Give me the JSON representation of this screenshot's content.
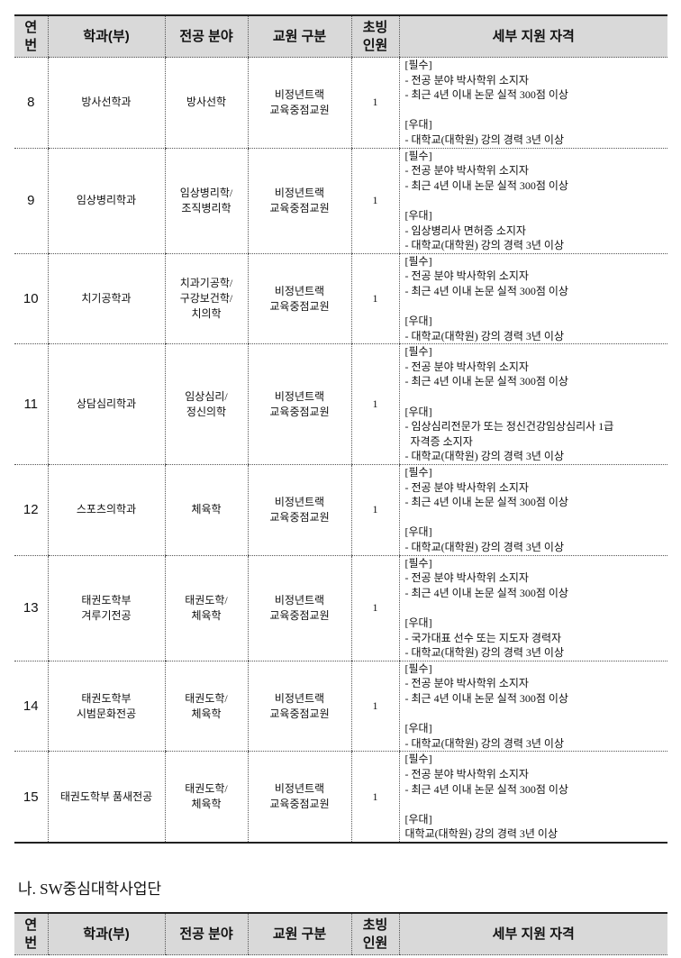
{
  "headers": {
    "no": "연\n번",
    "dept": "학과(부)",
    "field": "전공 분야",
    "type": "교원 구분",
    "count": "초빙\n인원",
    "detail": "세부 지원 자격"
  },
  "rows": [
    {
      "no": "8",
      "dept": "방사선학과",
      "field": "방사선학",
      "type": "비정년트랙\n교육중점교원",
      "count": "1",
      "detail": [
        "[필수]",
        "- 전공 분야 박사학위 소지자",
        "- 최근 4년 이내 논문 실적 300점 이상",
        "",
        "[우대]",
        "- 대학교(대학원) 강의 경력 3년 이상"
      ]
    },
    {
      "no": "9",
      "dept": "임상병리학과",
      "field": "임상병리학/\n조직병리학",
      "type": "비정년트랙\n교육중점교원",
      "count": "1",
      "detail": [
        "[필수]",
        "- 전공 분야 박사학위 소지자",
        "- 최근 4년 이내 논문 실적 300점 이상",
        "",
        "[우대]",
        "- 임상병리사 면허증 소지자",
        "- 대학교(대학원) 강의 경력 3년 이상"
      ]
    },
    {
      "no": "10",
      "dept": "치기공학과",
      "field": "치과기공학/\n구강보건학/\n치의학",
      "type": "비정년트랙\n교육중점교원",
      "count": "1",
      "detail": [
        "[필수]",
        "- 전공 분야 박사학위 소지자",
        "- 최근 4년 이내 논문 실적 300점 이상",
        "",
        "[우대]",
        "- 대학교(대학원) 강의 경력 3년 이상"
      ]
    },
    {
      "no": "11",
      "dept": "상담심리학과",
      "field": "임상심리/\n정신의학",
      "type": "비정년트랙\n교육중점교원",
      "count": "1",
      "detail": [
        "[필수]",
        "- 전공 분야 박사학위 소지자",
        "- 최근 4년 이내 논문 실적 300점 이상",
        "",
        "[우대]",
        "- 임상심리전문가 또는 정신건강임상심리사 1급",
        "  자격증 소지자",
        "- 대학교(대학원) 강의 경력 3년 이상"
      ]
    },
    {
      "no": "12",
      "dept": "스포츠의학과",
      "field": "체육학",
      "type": "비정년트랙\n교육중점교원",
      "count": "1",
      "detail": [
        "[필수]",
        "- 전공 분야 박사학위 소지자",
        "- 최근 4년 이내 논문 실적 300점 이상",
        "",
        "[우대]",
        "- 대학교(대학원) 강의 경력 3년 이상"
      ]
    },
    {
      "no": "13",
      "dept": "태권도학부\n겨루기전공",
      "field": "태권도학/\n체육학",
      "type": "비정년트랙\n교육중점교원",
      "count": "1",
      "detail": [
        "[필수]",
        "- 전공 분야 박사학위 소지자",
        "- 최근 4년 이내 논문 실적 300점 이상",
        "",
        "[우대]",
        "- 국가대표 선수 또는 지도자 경력자",
        "- 대학교(대학원) 강의 경력 3년 이상"
      ]
    },
    {
      "no": "14",
      "dept": "태권도학부\n시범문화전공",
      "field": "태권도학/\n체육학",
      "type": "비정년트랙\n교육중점교원",
      "count": "1",
      "detail": [
        "[필수]",
        "- 전공 분야 박사학위 소지자",
        "- 최근 4년 이내 논문 실적 300점 이상",
        "",
        "[우대]",
        "- 대학교(대학원) 강의 경력 3년 이상"
      ]
    },
    {
      "no": "15",
      "dept": "태권도학부 품새전공",
      "field": "태권도학/\n체육학",
      "type": "비정년트랙\n교육중점교원",
      "count": "1",
      "detail": [
        "[필수]",
        "- 전공 분야 박사학위 소지자",
        "- 최근 4년 이내 논문 실적 300점 이상",
        "",
        "[우대]",
        "대학교(대학원) 강의 경력 3년 이상"
      ]
    }
  ],
  "section_title": "나. SW중심대학사업단"
}
